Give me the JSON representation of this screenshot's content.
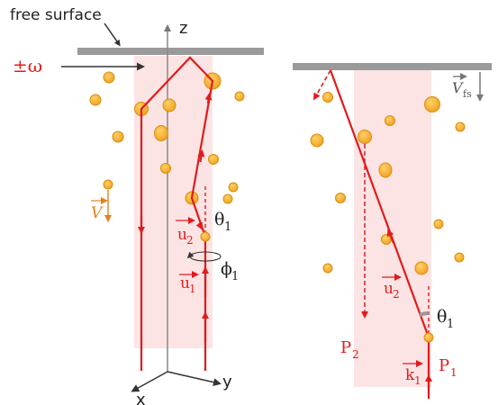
{
  "colors": {
    "beam": "#e31a1c",
    "bubble_fill": "#f7b733",
    "bubble_stroke": "#d98e0a",
    "orange_text": "#e87e1b",
    "surface": "#9a9a9a",
    "pink": "#fde4e4",
    "axis": "#888888",
    "dark": "#222222"
  },
  "left_panel": {
    "free_surface_label": "free surface",
    "omega_label": "±ω",
    "axis_z": "z",
    "axis_x": "x",
    "axis_y": "y",
    "theta1": "θ",
    "theta1_sub": "1",
    "phi1": "ϕ",
    "phi1_sub": "1",
    "u1": "u",
    "u1_sub": "1",
    "u2": "u",
    "u2_sub": "2",
    "velocity": "V"
  },
  "right_panel": {
    "vfs": "V",
    "vfs_sub": "fs",
    "u2": "u",
    "u2_sub": "2",
    "theta1": "θ",
    "theta1_sub": "1",
    "p1": "P",
    "p1_sub": "1",
    "p2": "P",
    "p2_sub": "2",
    "k1": "k",
    "k1_sub": "1"
  }
}
